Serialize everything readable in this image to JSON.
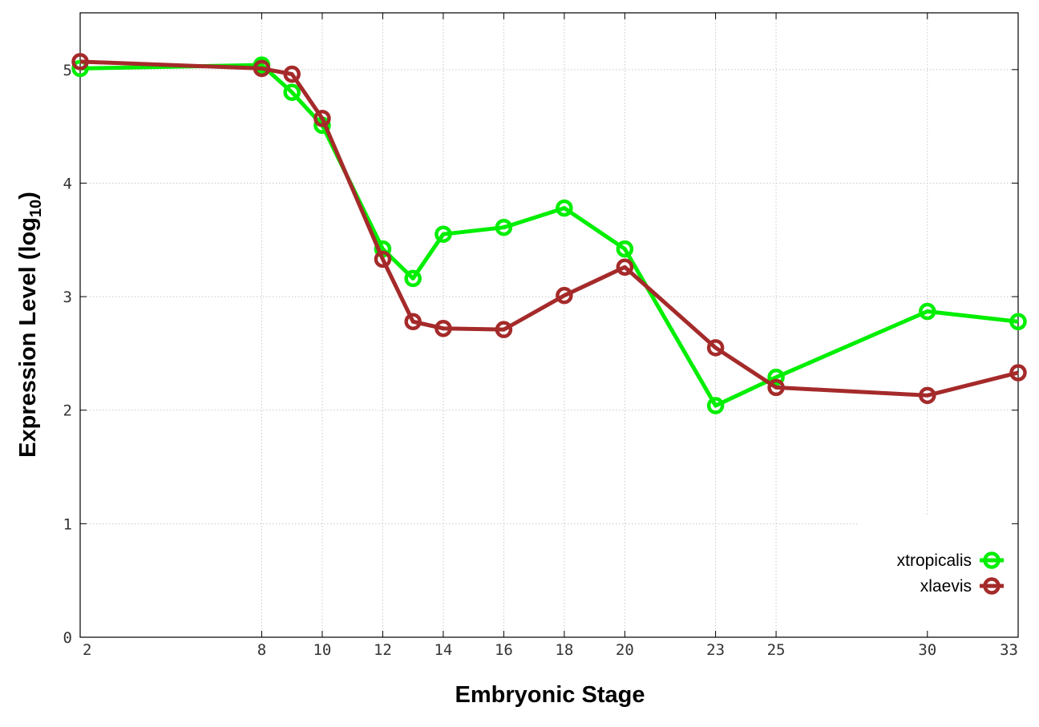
{
  "colors": {
    "xtropicalis": "#00ee00",
    "xlaevis": "#a52a2a"
  },
  "chart_data": {
    "type": "line",
    "xlabel": "Embryonic Stage",
    "ylabel_main": "Expression Level (log",
    "ylabel_sub": "10",
    "ylabel_close": ")",
    "xlim": [
      2,
      33
    ],
    "ylim": [
      0,
      5.5
    ],
    "x_ticks": [
      2,
      8,
      10,
      12,
      14,
      16,
      18,
      20,
      23,
      25,
      30,
      33
    ],
    "y_ticks": [
      0,
      1,
      2,
      3,
      4,
      5
    ],
    "grid": true,
    "legend_position": "bottom-right",
    "x": [
      2,
      8,
      9,
      10,
      12,
      13,
      14,
      16,
      18,
      20,
      23,
      25,
      30,
      33
    ],
    "series": [
      {
        "name": "xtropicalis",
        "color": "#00ee00",
        "values": [
          5.01,
          5.04,
          4.8,
          4.51,
          3.42,
          3.16,
          3.55,
          3.61,
          3.78,
          3.42,
          2.04,
          2.29,
          2.87,
          2.78
        ]
      },
      {
        "name": "xlaevis",
        "color": "#a52a2a",
        "values": [
          5.07,
          5.01,
          4.96,
          4.57,
          3.33,
          2.78,
          2.72,
          2.71,
          3.01,
          3.26,
          2.55,
          2.2,
          2.13,
          2.33
        ]
      }
    ]
  }
}
